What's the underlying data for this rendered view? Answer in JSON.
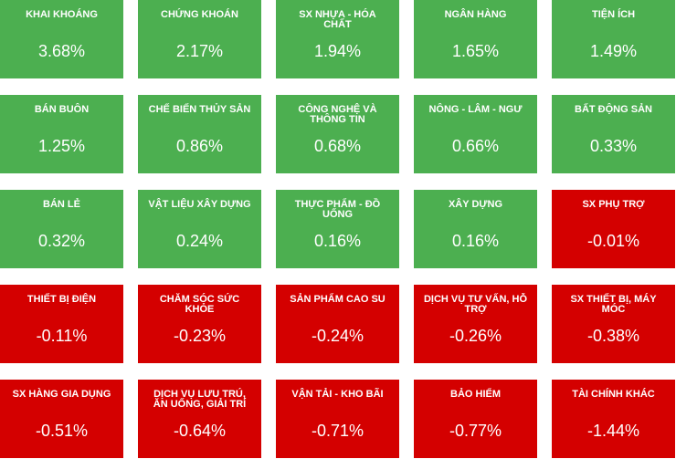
{
  "tiles": [
    {
      "name": "KHAI KHOÁNG",
      "change": "3.68%",
      "color": "#4caf50"
    },
    {
      "name": "CHỨNG KHOÁN",
      "change": "2.17%",
      "color": "#4caf50"
    },
    {
      "name": "SX NHỰA - HÓA CHẤT",
      "change": "1.94%",
      "color": "#4caf50"
    },
    {
      "name": "NGÂN HÀNG",
      "change": "1.65%",
      "color": "#4caf50"
    },
    {
      "name": "TIỆN ÍCH",
      "change": "1.49%",
      "color": "#4caf50"
    },
    {
      "name": "BÁN BUÔN",
      "change": "1.25%",
      "color": "#4caf50"
    },
    {
      "name": "CHẾ BIẾN THỦY SẢN",
      "change": "0.86%",
      "color": "#4caf50"
    },
    {
      "name": "CÔNG NGHỆ VÀ THÔNG TIN",
      "change": "0.68%",
      "color": "#4caf50"
    },
    {
      "name": "NÔNG - LÂM - NGƯ",
      "change": "0.66%",
      "color": "#4caf50"
    },
    {
      "name": "BẤT ĐỘNG SẢN",
      "change": "0.33%",
      "color": "#4caf50"
    },
    {
      "name": "BÁN LẺ",
      "change": "0.32%",
      "color": "#4caf50"
    },
    {
      "name": "VẬT LIỆU XÂY DỰNG",
      "change": "0.24%",
      "color": "#4caf50"
    },
    {
      "name": "THỰC PHẨM - ĐỒ UỐNG",
      "change": "0.16%",
      "color": "#4caf50"
    },
    {
      "name": "XÂY DỰNG",
      "change": "0.16%",
      "color": "#4caf50"
    },
    {
      "name": "SX PHỤ TRỢ",
      "change": "-0.01%",
      "color": "#d40000"
    },
    {
      "name": "THIẾT BỊ ĐIỆN",
      "change": "-0.11%",
      "color": "#d40000"
    },
    {
      "name": "CHĂM SÓC SỨC KHỎE",
      "change": "-0.23%",
      "color": "#d40000"
    },
    {
      "name": "SẢN PHẨM CAO SU",
      "change": "-0.24%",
      "color": "#d40000"
    },
    {
      "name": "DỊCH VỤ TƯ VẤN, HỖ TRỢ",
      "change": "-0.26%",
      "color": "#d40000"
    },
    {
      "name": "SX THIẾT BỊ, MÁY MÓC",
      "change": "-0.38%",
      "color": "#d40000"
    },
    {
      "name": "SX HÀNG GIA DỤNG",
      "change": "-0.51%",
      "color": "#d40000"
    },
    {
      "name": "DỊCH VỤ LƯU TRÚ, ĂN UỐNG, GIẢI TRÍ",
      "change": "-0.64%",
      "color": "#d40000"
    },
    {
      "name": "VẬN TẢI - KHO BÃI",
      "change": "-0.71%",
      "color": "#d40000"
    },
    {
      "name": "BẢO HIỂM",
      "change": "-0.77%",
      "color": "#d40000"
    },
    {
      "name": "TÀI CHÍNH KHÁC",
      "change": "-1.44%",
      "color": "#d40000"
    }
  ]
}
